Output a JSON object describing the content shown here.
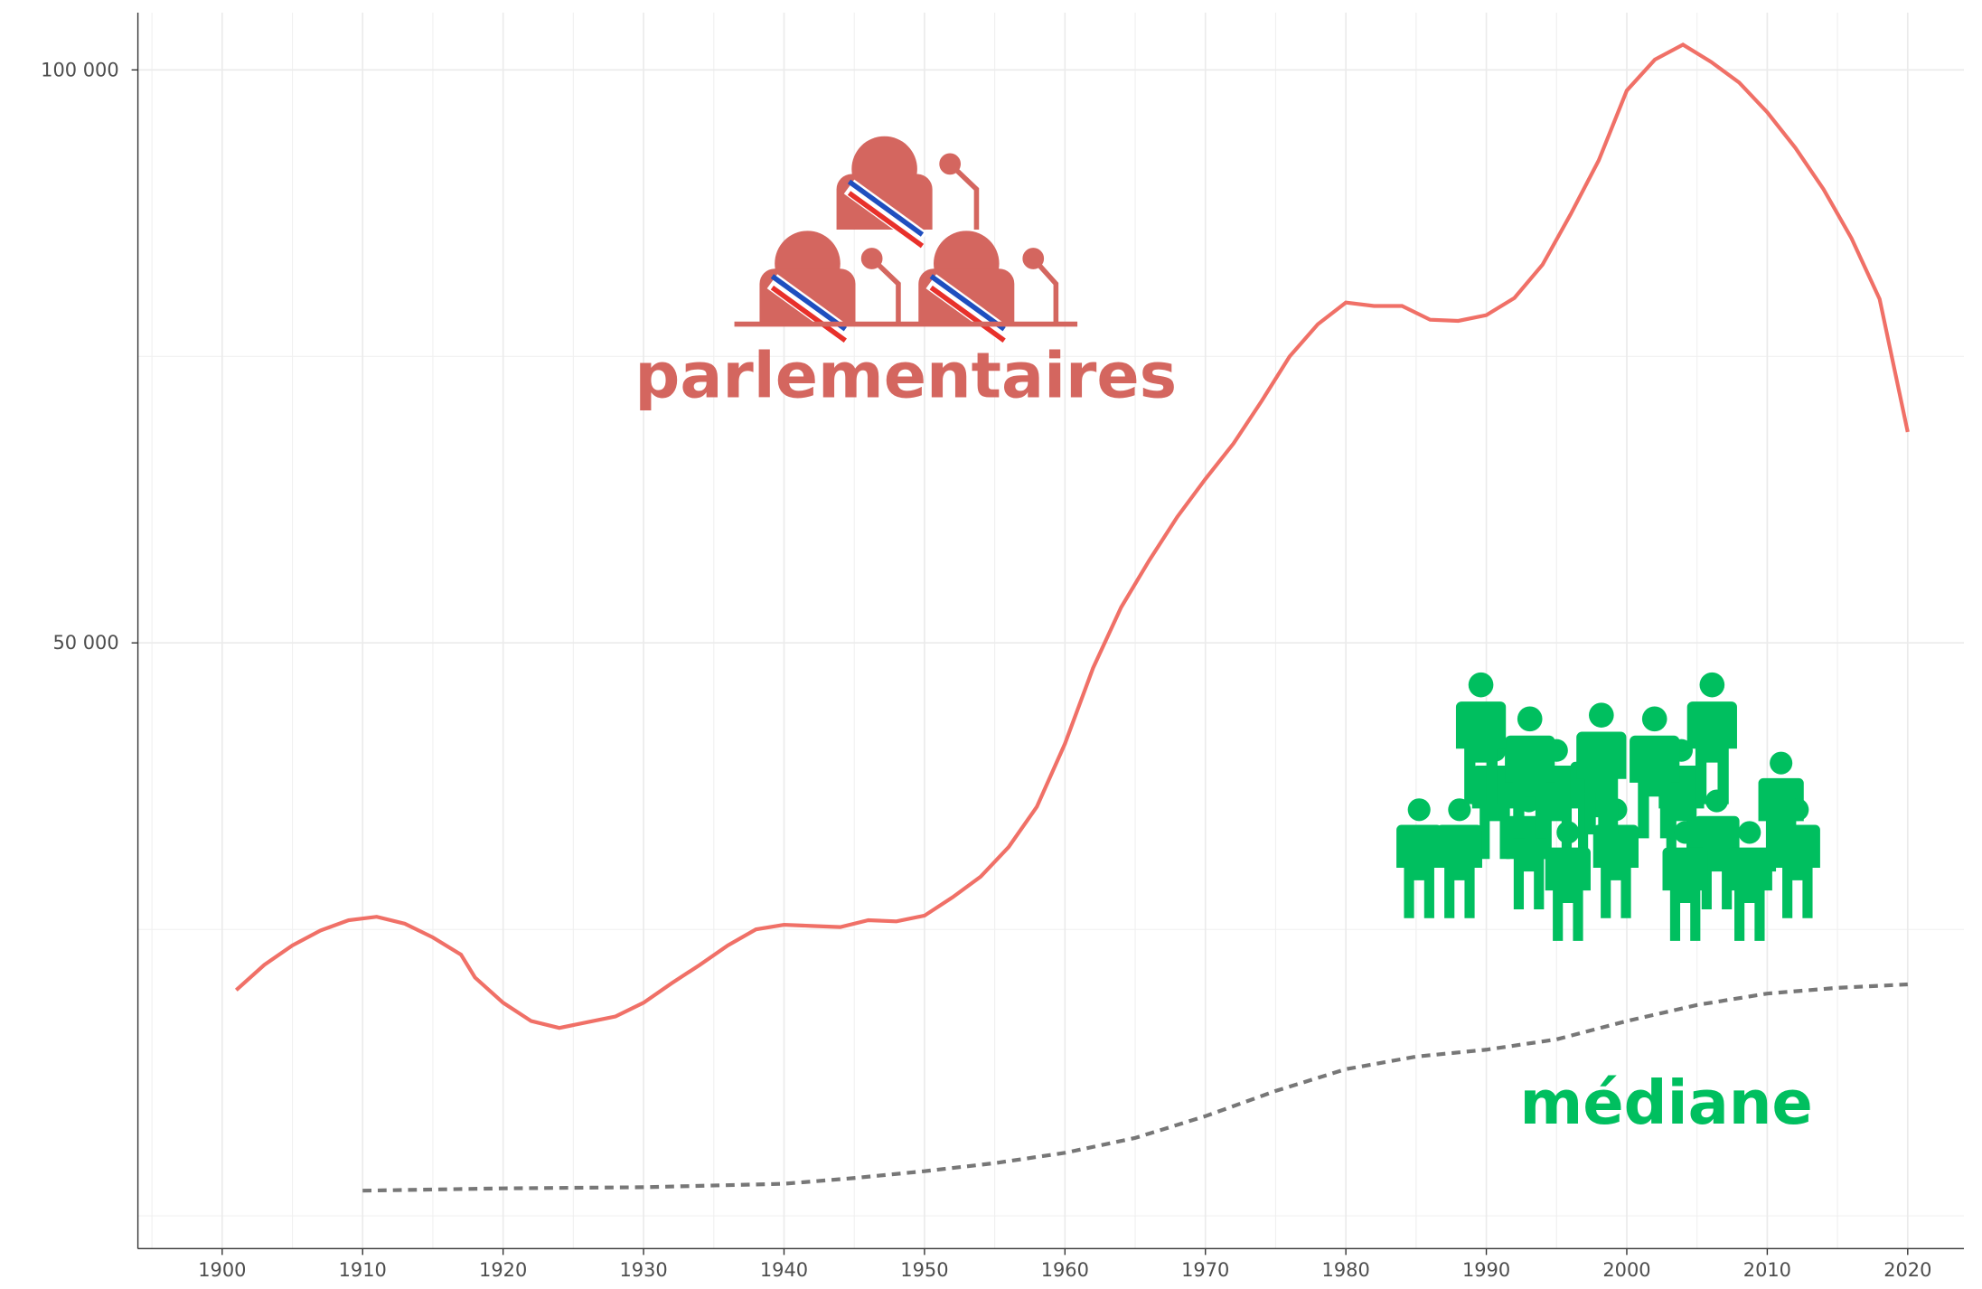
{
  "chart_data": {
    "type": "line",
    "xlim": [
      1894,
      2024
    ],
    "ylim": [
      -2860,
      105000
    ],
    "xticks": [
      1900,
      1910,
      1920,
      1930,
      1940,
      1950,
      1960,
      1970,
      1980,
      1990,
      2000,
      2010,
      2020
    ],
    "minor_xticks": [
      1895,
      1905,
      1915,
      1925,
      1935,
      1945,
      1955,
      1965,
      1975,
      1985,
      1995,
      2005,
      2015
    ],
    "yticks": [
      {
        "value": 50000,
        "label": "50 000"
      },
      {
        "value": 100000,
        "label": "100 000"
      }
    ],
    "minor_yticks": [
      0,
      25000,
      75000
    ],
    "grid": true,
    "annotations": [
      "parlementaires",
      "médiane"
    ],
    "series": [
      {
        "name": "parlementaires",
        "color": "#f07067",
        "dash": false,
        "x": [
          1901,
          1903,
          1905,
          1907,
          1909,
          1911,
          1913,
          1915,
          1917,
          1918,
          1920,
          1922,
          1924,
          1926,
          1928,
          1930,
          1932,
          1934,
          1936,
          1938,
          1940,
          1942,
          1944,
          1946,
          1948,
          1950,
          1952,
          1954,
          1956,
          1958,
          1960,
          1962,
          1964,
          1966,
          1968,
          1970,
          1972,
          1974,
          1976,
          1978,
          1980,
          1982,
          1984,
          1986,
          1988,
          1990,
          1992,
          1994,
          1996,
          1998,
          2000,
          2002,
          2004,
          2006,
          2008,
          2010,
          2012,
          2014,
          2016,
          2018,
          2020
        ],
        "values": [
          19700,
          21900,
          23600,
          24900,
          25800,
          26100,
          25500,
          24300,
          22800,
          20800,
          18600,
          17000,
          16400,
          16900,
          17400,
          18600,
          20300,
          21900,
          23600,
          25000,
          25400,
          25300,
          25200,
          25800,
          25700,
          26200,
          27800,
          29600,
          32200,
          35700,
          41200,
          47800,
          53100,
          57200,
          61000,
          64300,
          67400,
          71100,
          75000,
          77800,
          79700,
          79400,
          79400,
          78200,
          78100,
          78600,
          80100,
          83000,
          87400,
          92100,
          98200,
          100900,
          102200,
          100700,
          98900,
          96300,
          93200,
          89600,
          85300,
          80000,
          68400
        ]
      },
      {
        "name": "médiane",
        "color": "#777777",
        "dash": true,
        "x": [
          1910,
          1920,
          1930,
          1940,
          1945,
          1950,
          1955,
          1960,
          1965,
          1970,
          1975,
          1980,
          1985,
          1990,
          1995,
          2000,
          2005,
          2010,
          2015,
          2020
        ],
        "values": [
          2200,
          2400,
          2500,
          2800,
          3300,
          3900,
          4600,
          5500,
          6800,
          8700,
          10900,
          12800,
          13900,
          14500,
          15400,
          17000,
          18400,
          19400,
          19900,
          20200
        ]
      }
    ]
  }
}
